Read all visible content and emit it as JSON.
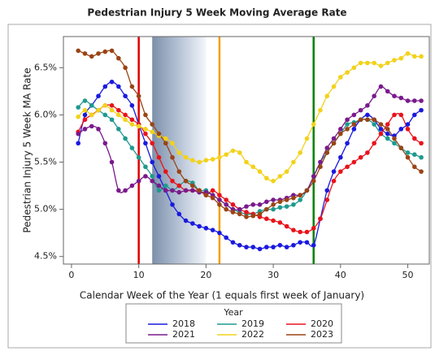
{
  "chart_data": {
    "type": "line",
    "markers": true,
    "title": "Pedestrian Injury 5 Week Moving Average Rate",
    "x_label": "Calendar Week of the Year (1 equals first week of January)",
    "y_label": "Pedestrian Injury 5 Week MA Rate",
    "legend_title": "Year",
    "x": [
      1,
      2,
      3,
      4,
      5,
      6,
      7,
      8,
      9,
      10,
      11,
      12,
      13,
      14,
      15,
      16,
      17,
      18,
      19,
      20,
      21,
      22,
      23,
      24,
      25,
      26,
      27,
      28,
      29,
      30,
      31,
      32,
      33,
      34,
      35,
      36,
      37,
      38,
      39,
      40,
      41,
      42,
      43,
      44,
      45,
      46,
      47,
      48,
      49,
      50,
      51,
      52
    ],
    "series": [
      {
        "name": "2018",
        "color": "#1a1adf",
        "values": [
          5.7,
          6.0,
          6.1,
          6.2,
          6.3,
          6.35,
          6.3,
          6.2,
          6.1,
          5.9,
          5.7,
          5.5,
          5.35,
          5.2,
          5.05,
          4.95,
          4.88,
          4.85,
          4.82,
          4.8,
          4.78,
          4.75,
          4.7,
          4.65,
          4.62,
          4.6,
          4.6,
          4.58,
          4.6,
          4.6,
          4.62,
          4.6,
          4.62,
          4.65,
          4.65,
          4.62,
          4.9,
          5.2,
          5.4,
          5.55,
          5.7,
          5.85,
          5.95,
          6.0,
          5.95,
          5.85,
          5.8,
          5.78,
          5.85,
          5.9,
          6.0,
          6.05
        ]
      },
      {
        "name": "2019",
        "color": "#1f9a8e",
        "values": [
          6.08,
          6.15,
          6.1,
          6.05,
          6.0,
          5.95,
          5.85,
          5.75,
          5.65,
          5.55,
          5.45,
          5.35,
          5.2,
          5.25,
          5.2,
          5.25,
          5.3,
          5.28,
          5.2,
          5.2,
          5.15,
          5.1,
          5.05,
          5.0,
          4.97,
          4.95,
          4.95,
          4.98,
          5.0,
          5.0,
          5.02,
          5.03,
          5.05,
          5.1,
          5.2,
          5.35,
          5.5,
          5.6,
          5.7,
          5.8,
          5.9,
          5.92,
          5.95,
          5.95,
          5.9,
          5.8,
          5.75,
          5.7,
          5.65,
          5.6,
          5.58,
          5.55
        ]
      },
      {
        "name": "2020",
        "color": "#e8131b",
        "values": [
          5.82,
          5.95,
          6.0,
          6.05,
          6.1,
          6.1,
          6.05,
          6.0,
          5.95,
          5.9,
          5.8,
          5.7,
          5.55,
          5.4,
          5.3,
          5.25,
          5.2,
          5.2,
          5.2,
          5.15,
          5.2,
          5.15,
          5.1,
          5.05,
          5.0,
          4.97,
          4.95,
          4.92,
          4.9,
          4.88,
          4.86,
          4.82,
          4.78,
          4.76,
          4.76,
          4.8,
          4.9,
          5.1,
          5.3,
          5.4,
          5.45,
          5.5,
          5.55,
          5.6,
          5.7,
          5.8,
          5.9,
          6.0,
          6.0,
          5.85,
          5.75,
          5.7
        ]
      },
      {
        "name": "2021",
        "color": "#7a1a8c",
        "values": [
          5.8,
          5.85,
          5.88,
          5.85,
          5.7,
          5.5,
          5.2,
          5.2,
          5.25,
          5.3,
          5.35,
          5.3,
          5.25,
          5.2,
          5.2,
          5.18,
          5.2,
          5.2,
          5.18,
          5.18,
          5.15,
          5.1,
          5.05,
          5.0,
          5.0,
          5.03,
          5.05,
          5.05,
          5.08,
          5.1,
          5.1,
          5.12,
          5.15,
          5.15,
          5.2,
          5.35,
          5.5,
          5.65,
          5.75,
          5.85,
          5.95,
          6.0,
          6.05,
          6.1,
          6.2,
          6.3,
          6.25,
          6.2,
          6.18,
          6.15,
          6.15,
          6.15
        ]
      },
      {
        "name": "2022",
        "color": "#f2d21b",
        "values": [
          5.98,
          6.05,
          6.0,
          6.05,
          6.1,
          6.05,
          6.0,
          5.95,
          5.9,
          5.88,
          5.85,
          5.82,
          5.78,
          5.75,
          5.7,
          5.6,
          5.55,
          5.52,
          5.5,
          5.52,
          5.53,
          5.55,
          5.58,
          5.62,
          5.6,
          5.5,
          5.45,
          5.4,
          5.33,
          5.3,
          5.35,
          5.4,
          5.5,
          5.6,
          5.75,
          5.9,
          6.05,
          6.2,
          6.3,
          6.4,
          6.45,
          6.5,
          6.55,
          6.55,
          6.55,
          6.52,
          6.55,
          6.58,
          6.6,
          6.65,
          6.62,
          6.62
        ]
      },
      {
        "name": "2023",
        "color": "#9a4415",
        "values": [
          6.68,
          6.65,
          6.62,
          6.65,
          6.67,
          6.68,
          6.6,
          6.5,
          6.3,
          6.2,
          6.0,
          5.9,
          5.8,
          5.7,
          5.55,
          5.4,
          5.3,
          5.25,
          5.2,
          5.15,
          5.12,
          5.05,
          5.0,
          4.97,
          4.95,
          4.92,
          4.93,
          4.95,
          5.0,
          5.05,
          5.08,
          5.1,
          5.12,
          5.15,
          5.2,
          5.3,
          5.45,
          5.6,
          5.7,
          5.8,
          5.85,
          5.9,
          5.95,
          5.95,
          5.95,
          5.9,
          5.85,
          5.75,
          5.65,
          5.55,
          5.45,
          5.4
        ]
      }
    ],
    "xlim": [
      -1.2,
      53.2
    ],
    "xticks": [
      0,
      10,
      20,
      30,
      40,
      50
    ],
    "ylim": [
      4.42,
      6.83
    ],
    "yticks": [
      {
        "value": 4.5,
        "label": "4.5%"
      },
      {
        "value": 5,
        "label": "5.0%"
      },
      {
        "value": 5.5,
        "label": "5.5%"
      },
      {
        "value": 6,
        "label": "6.0%"
      },
      {
        "value": 6.5,
        "label": "6.5%"
      }
    ],
    "shaded_band": [
      12,
      20
    ],
    "reference_lines": [
      {
        "value": 10,
        "color": "#e00000"
      },
      {
        "value": 22,
        "color": "#f5a000"
      },
      {
        "value": 36,
        "color": "#008000"
      }
    ]
  }
}
